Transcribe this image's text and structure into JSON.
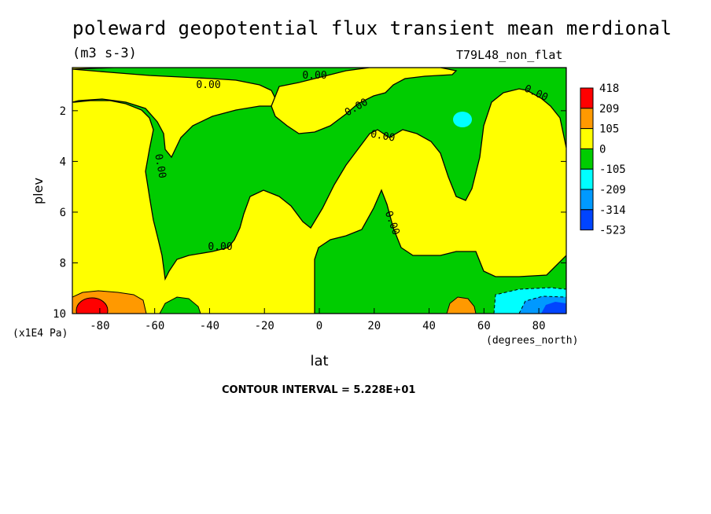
{
  "header": {
    "title": "poleward geopotential flux transient mean merdional",
    "units": "(m3 s-3)",
    "run_label": "T79L48_non_flat"
  },
  "footer": {
    "contour_interval": "CONTOUR INTERVAL = 5.228E+01"
  },
  "chart_data": {
    "type": "heatmap",
    "title": "poleward geopotential flux transient mean merdional",
    "xlabel": "lat",
    "x_units": "(degrees_north)",
    "ylabel": "plev",
    "y_units": "(x1E4 Pa)",
    "xlim": [
      -90,
      90
    ],
    "ylim": [
      10,
      0.3
    ],
    "x_ticks": [
      -80,
      -60,
      -40,
      -20,
      0,
      20,
      40,
      60,
      80
    ],
    "x_tick_labels": [
      "-80",
      "-60",
      "-40",
      "-20",
      "0",
      "20",
      "40",
      "60",
      "80"
    ],
    "y_ticks": [
      2,
      4,
      6,
      8,
      10
    ],
    "y_tick_labels": [
      "2",
      "4",
      "6",
      "8",
      "10"
    ],
    "contour_labels": [
      "0.00",
      "0.00",
      "0.00",
      "0.00",
      "0.00",
      "0.00",
      "0.00",
      "0.00"
    ],
    "colorbar": {
      "levels": [
        "418",
        "209",
        "105",
        "0",
        "-105",
        "-209",
        "-314",
        "-523"
      ],
      "colors": [
        "#ff0000",
        "#ff9900",
        "#ffff00",
        "#00cc00",
        "#00ffff",
        "#0099ff",
        "#0044ff"
      ]
    },
    "colors": {
      "positive": "#ffff00",
      "negative": "#00cc00",
      "strong_positive": "#ff9900",
      "max_positive": "#ff0000",
      "mild_negative": "#00ffff",
      "strong_negative": "#0099ff",
      "max_negative": "#0044ff"
    }
  }
}
